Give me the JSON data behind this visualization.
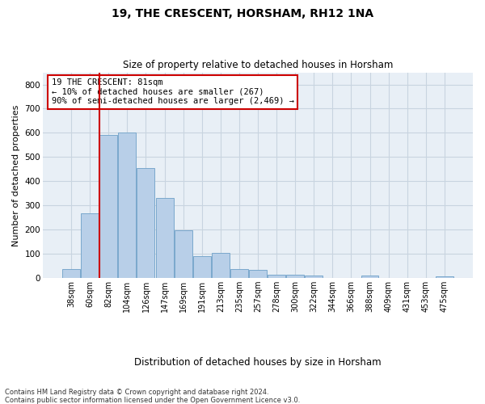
{
  "title1": "19, THE CRESCENT, HORSHAM, RH12 1NA",
  "title2": "Size of property relative to detached houses in Horsham",
  "xlabel": "Distribution of detached houses by size in Horsham",
  "ylabel": "Number of detached properties",
  "categories": [
    "38sqm",
    "60sqm",
    "82sqm",
    "104sqm",
    "126sqm",
    "147sqm",
    "169sqm",
    "191sqm",
    "213sqm",
    "235sqm",
    "257sqm",
    "278sqm",
    "300sqm",
    "322sqm",
    "344sqm",
    "366sqm",
    "388sqm",
    "409sqm",
    "431sqm",
    "453sqm",
    "475sqm"
  ],
  "values": [
    38,
    267,
    590,
    600,
    453,
    330,
    197,
    90,
    103,
    38,
    33,
    14,
    14,
    10,
    0,
    0,
    10,
    0,
    0,
    0,
    8
  ],
  "bar_color": "#b8cfe8",
  "bar_edge_color": "#7aa8cc",
  "property_line_label": "19 THE CRESCENT: 81sqm",
  "annotation_line1": "← 10% of detached houses are smaller (267)",
  "annotation_line2": "90% of semi-detached houses are larger (2,469) →",
  "annotation_box_color": "#ffffff",
  "annotation_box_edge": "#cc0000",
  "vline_color": "#cc0000",
  "footer1": "Contains HM Land Registry data © Crown copyright and database right 2024.",
  "footer2": "Contains public sector information licensed under the Open Government Licence v3.0.",
  "ylim": [
    0,
    850
  ],
  "yticks": [
    0,
    100,
    200,
    300,
    400,
    500,
    600,
    700,
    800
  ],
  "grid_color": "#c8d4e0",
  "background_color": "#e8eff6",
  "title1_fontsize": 10,
  "title2_fontsize": 8.5,
  "ylabel_fontsize": 8,
  "xlabel_fontsize": 8.5,
  "tick_fontsize": 7,
  "footer_fontsize": 6,
  "annot_fontsize": 7.5
}
